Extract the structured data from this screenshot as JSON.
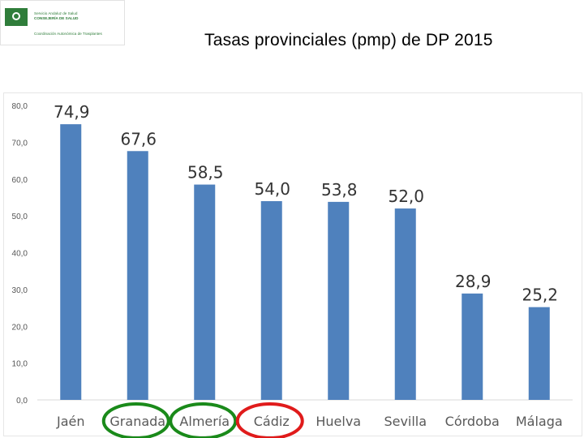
{
  "header": {
    "logo_line1": "Servicio Andaluz de Salud",
    "logo_line2": "CONSEJERÍA DE SALUD",
    "logo_line3": "Coordinación Autonómica de Trasplantes",
    "title": "Tasas provinciales (pmp) de DP  2015"
  },
  "chart_data": {
    "type": "bar",
    "title": "Tasas provinciales (pmp) de DP  2015",
    "categories": [
      "Jaén",
      "Granada",
      "Almería",
      "Cádiz",
      "Huelva",
      "Sevilla",
      "Córdoba",
      "Málaga"
    ],
    "values": [
      74.9,
      67.6,
      58.5,
      54.0,
      53.8,
      52.0,
      28.9,
      25.2
    ],
    "data_labels": [
      "74,9",
      "67,6",
      "58,5",
      "54,0",
      "53,8",
      "52,0",
      "28,9",
      "25,2"
    ],
    "yticks": [
      "0,0",
      "10,0",
      "20,0",
      "30,0",
      "40,0",
      "50,0",
      "60,0",
      "70,0",
      "80,0"
    ],
    "ylim": [
      0,
      80
    ],
    "grid": false,
    "bar_color": "#4f81bd",
    "highlights": [
      {
        "category": "Granada",
        "color": "#1a8a1a"
      },
      {
        "category": "Almería",
        "color": "#1a8a1a"
      },
      {
        "category": "Cádiz",
        "color": "#e01b1b"
      }
    ]
  }
}
